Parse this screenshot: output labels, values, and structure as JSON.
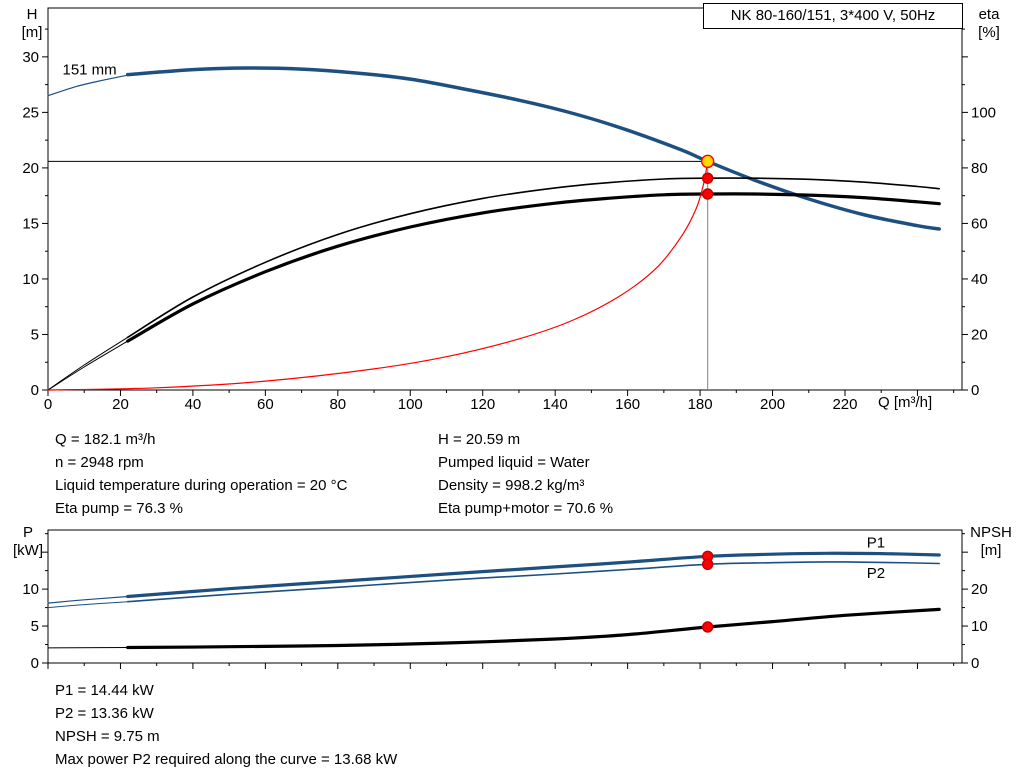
{
  "colors": {
    "curve_blue": "#1d5080",
    "marker_red": "#ff0000",
    "duty_yellow": "#ffd800",
    "duty_gray": "#808080"
  },
  "header": {
    "title": "NK 80-160/151, 3*400 V, 50Hz"
  },
  "axes": {
    "qh": {
      "left_1": "H",
      "left_2": "[m]",
      "right_1": "eta",
      "right_2": "[%]",
      "x": "Q [m³/h]"
    },
    "power": {
      "left_1": "P",
      "left_2": "[kW]",
      "right_1": "NPSH",
      "right_2": "[m]"
    }
  },
  "info": {
    "left": [
      "Q = 182.1 m³/h",
      "n = 2948 rpm",
      "Liquid temperature during operation = 20 °C",
      "Eta pump = 76.3 %"
    ],
    "right": [
      "H = 20.59 m",
      "Pumped liquid = Water",
      "Density = 998.2 kg/m³",
      "Eta pump+motor = 70.6 %"
    ]
  },
  "summary": [
    "P1 = 14.44 kW",
    "P2 = 13.36 kW",
    "NPSH = 9.75 m",
    "Max power P2 required along the curve = 13.68 kW"
  ],
  "chart_data": [
    {
      "id": "qh",
      "type": "line",
      "title": "NK 80-160/151, 3*400 V, 50Hz",
      "xlabel": "Q [m³/h]",
      "ylabel_left": "H [m]",
      "ylabel_right": "eta [%]",
      "xlim": [
        0,
        252.3
      ],
      "ylim_left": [
        0,
        34.4
      ],
      "ylim_right": [
        0,
        137.6
      ],
      "xticks": {
        "step": 20,
        "minor": 10,
        "max_label": 220,
        "show_labels": true
      },
      "yticks_left": {
        "step": 5,
        "minor": 2.5,
        "max_label": 30
      },
      "yticks_right": {
        "step": 20,
        "minor": 10,
        "max_label": 100
      },
      "series": [
        {
          "name": "head-151mm-lead",
          "axis": "left",
          "color": "#1d5080",
          "width": 1.2,
          "x": [
            0,
            8,
            16,
            22
          ],
          "y": [
            26.5,
            27.35,
            27.95,
            28.35
          ]
        },
        {
          "name": "head-151mm",
          "axis": "left",
          "color": "#1d5080",
          "width": 3.5,
          "x": [
            22,
            40,
            55,
            70,
            85,
            100,
            115,
            130,
            145,
            160,
            175,
            182.1,
            195,
            210,
            225,
            240,
            246
          ],
          "y": [
            28.4,
            28.85,
            29.0,
            28.9,
            28.55,
            28.0,
            27.1,
            26.1,
            24.9,
            23.4,
            21.6,
            20.59,
            18.9,
            17.2,
            15.8,
            14.8,
            14.5
          ]
        },
        {
          "name": "eta-pump-lead",
          "axis": "right",
          "color": "#000000",
          "width": 1,
          "x": [
            0,
            10,
            22
          ],
          "y": [
            0,
            9,
            19
          ]
        },
        {
          "name": "eta-pump",
          "axis": "right",
          "color": "#000000",
          "width": 1.6,
          "x": [
            22,
            40,
            60,
            80,
            100,
            120,
            140,
            155,
            170,
            182.1,
            195,
            210,
            225,
            240,
            246
          ],
          "y": [
            19,
            33.5,
            46,
            56,
            63.5,
            69,
            72.8,
            74.7,
            76.0,
            76.3,
            76.3,
            75.9,
            74.9,
            73.3,
            72.5
          ]
        },
        {
          "name": "eta-pump-motor-lead",
          "axis": "right",
          "color": "#000000",
          "width": 1,
          "x": [
            0,
            10,
            22
          ],
          "y": [
            0,
            8.3,
            17.6
          ]
        },
        {
          "name": "eta-pump-motor",
          "axis": "right",
          "color": "#000000",
          "width": 3.2,
          "x": [
            22,
            40,
            60,
            80,
            100,
            120,
            140,
            155,
            170,
            182.1,
            195,
            210,
            225,
            240,
            246
          ],
          "y": [
            17.6,
            31,
            42.6,
            51.8,
            58.7,
            63.8,
            67.3,
            69.1,
            70.3,
            70.6,
            70.6,
            70.2,
            69.3,
            67.8,
            67.1
          ]
        },
        {
          "name": "system-curve",
          "axis": "left",
          "color": "#ff0000",
          "width": 1.2,
          "x": [
            0,
            30,
            60,
            90,
            110,
            130,
            145,
            158,
            168,
            175,
            179,
            181,
            182.1
          ],
          "y": [
            0,
            0.2,
            0.8,
            1.9,
            3.0,
            4.6,
            6.3,
            8.5,
            11.0,
            13.9,
            16.4,
            18.6,
            20.59
          ]
        }
      ],
      "duty_lines": {
        "h_value": 20.59,
        "v_x": 182.1,
        "h_color": "#000000",
        "v_color": "#808080"
      },
      "markers": [
        {
          "name": "eta-pump-marker",
          "x": 182.1,
          "y": 76.3,
          "axis": "right",
          "fill": "#ff0000",
          "stroke": "#c00000",
          "r": 5
        },
        {
          "name": "eta-pump-motor-marker",
          "x": 182.1,
          "y": 70.6,
          "axis": "right",
          "fill": "#ff0000",
          "stroke": "#c00000",
          "r": 5
        },
        {
          "name": "duty-point-marker",
          "x": 182.1,
          "y": 20.59,
          "axis": "left",
          "fill": "#ffd800",
          "stroke": "#ff0000",
          "r": 6
        }
      ],
      "annotations": [
        {
          "name": "impeller-size-label",
          "text": "151 mm",
          "x": 4,
          "y": 28.4,
          "axis": "left",
          "color": "#000000"
        }
      ]
    },
    {
      "id": "power",
      "type": "line",
      "title": "",
      "xlabel": "",
      "ylabel_left": "P [kW]",
      "ylabel_right": "NPSH [m]",
      "xlim": [
        0,
        252.3
      ],
      "ylim_left": [
        0,
        18
      ],
      "ylim_right": [
        0,
        36
      ],
      "xticks": {
        "step": 20,
        "minor": 10,
        "max_label": -1,
        "show_labels": false
      },
      "yticks_left": {
        "step": 5,
        "minor": 2.5,
        "max_label": 10
      },
      "yticks_right": {
        "step": 10,
        "minor": 5,
        "max_label": 20
      },
      "series": [
        {
          "name": "p1-lead",
          "axis": "left",
          "color": "#1d5080",
          "width": 1.2,
          "x": [
            0,
            10,
            22
          ],
          "y": [
            8.1,
            8.55,
            9.0
          ]
        },
        {
          "name": "p1",
          "axis": "left",
          "color": "#1d5080",
          "width": 3.2,
          "x": [
            22,
            50,
            80,
            110,
            140,
            160,
            182.1,
            200,
            215,
            230,
            246
          ],
          "y": [
            9.0,
            10.05,
            11.05,
            12.05,
            13.0,
            13.65,
            14.44,
            14.72,
            14.85,
            14.8,
            14.62
          ]
        },
        {
          "name": "p2-lead",
          "axis": "left",
          "color": "#1d5080",
          "width": 1,
          "x": [
            0,
            10,
            22
          ],
          "y": [
            7.5,
            7.9,
            8.3
          ]
        },
        {
          "name": "p2",
          "axis": "left",
          "color": "#1d5080",
          "width": 1.6,
          "x": [
            22,
            50,
            80,
            110,
            140,
            160,
            182.1,
            200,
            215,
            230,
            246
          ],
          "y": [
            8.3,
            9.3,
            10.25,
            11.2,
            12.05,
            12.65,
            13.36,
            13.58,
            13.68,
            13.62,
            13.46
          ]
        },
        {
          "name": "npsh-lead",
          "axis": "right",
          "color": "#000000",
          "width": 1,
          "x": [
            0,
            22
          ],
          "y": [
            4.1,
            4.2
          ]
        },
        {
          "name": "npsh",
          "axis": "right",
          "color": "#000000",
          "width": 3.2,
          "x": [
            22,
            50,
            80,
            110,
            140,
            160,
            182.1,
            200,
            220,
            246
          ],
          "y": [
            4.2,
            4.4,
            4.75,
            5.4,
            6.5,
            7.7,
            9.75,
            11.2,
            12.9,
            14.5
          ]
        }
      ],
      "markers": [
        {
          "name": "p1-marker",
          "x": 182.1,
          "y": 14.44,
          "axis": "left",
          "fill": "#ff0000",
          "stroke": "#c00000",
          "r": 5
        },
        {
          "name": "p2-marker",
          "x": 182.1,
          "y": 13.36,
          "axis": "left",
          "fill": "#ff0000",
          "stroke": "#c00000",
          "r": 5
        },
        {
          "name": "npsh-marker",
          "x": 182.1,
          "y": 9.75,
          "axis": "right",
          "fill": "#ff0000",
          "stroke": "#c00000",
          "r": 5
        }
      ],
      "annotations": [
        {
          "name": "p1-curve-label",
          "text": "P1",
          "x": 226,
          "y": 15.6,
          "axis": "left",
          "color": "#1d5080"
        },
        {
          "name": "p2-curve-label",
          "text": "P2",
          "x": 226,
          "y": 11.5,
          "axis": "left",
          "color": "#1d5080"
        }
      ]
    }
  ]
}
